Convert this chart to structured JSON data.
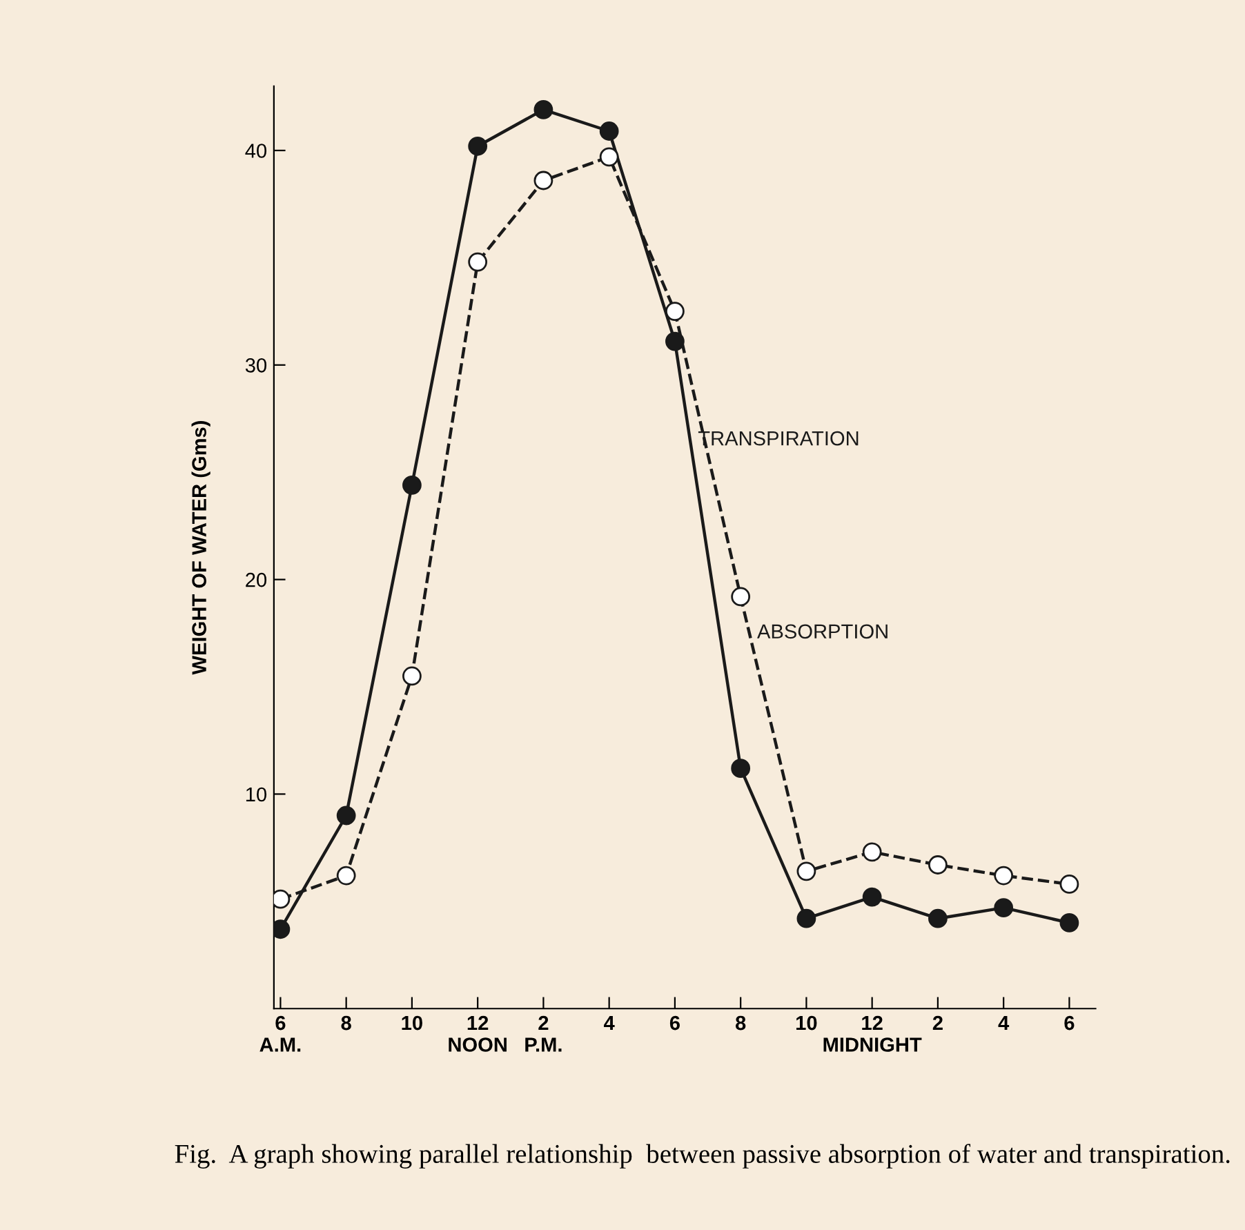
{
  "chart_data": {
    "type": "line",
    "categories": [
      "6\nA.M.",
      "8",
      "10",
      "12\nNOON",
      "2\nP.M.",
      "4",
      "6",
      "8",
      "10",
      "12\nMIDNIGHT",
      "2",
      "4",
      "6"
    ],
    "series": [
      {
        "name": "TRANSPIRATION",
        "color": "#1a1a1a",
        "marker": "circle",
        "line_style": "solid",
        "values": [
          3.7,
          9.0,
          24.4,
          40.2,
          41.9,
          40.9,
          31.1,
          11.2,
          4.2,
          5.2,
          4.2,
          4.7,
          4.0
        ]
      },
      {
        "name": "ABSORPTION",
        "color": "#1a1a1a",
        "marker": "circle",
        "line_style": "dashed",
        "values": [
          5.1,
          6.2,
          15.5,
          34.8,
          38.6,
          39.7,
          32.5,
          19.2,
          6.4,
          7.3,
          6.7,
          6.2,
          5.8
        ]
      }
    ],
    "ylabel": "WEIGHT OF WATER (Gms)",
    "ylim": [
      0,
      43
    ],
    "yticks": [
      10,
      20,
      30,
      40
    ],
    "grid": false,
    "legend": false,
    "annotations": [
      "Fig.  A graph showing parallel relationship  between passive absorption of water and transpiration."
    ]
  }
}
